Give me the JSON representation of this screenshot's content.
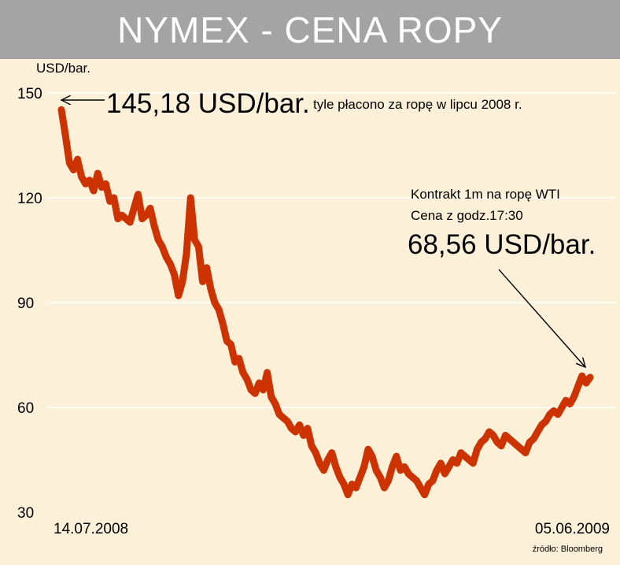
{
  "title": "NYMEX - CENA ROPY",
  "colors": {
    "background": "#fdf0d8",
    "title_bar": "#a4a4a4",
    "line": "#cc3300",
    "grid": "#ffffff"
  },
  "annotations": {
    "peak_value": "145,18 USD/bar.",
    "peak_note": "tyle płacono za ropę w lipcu 2008 r.",
    "contract_line1": "Kontrakt 1m na ropę WTI",
    "contract_line2": "Cena z godz.17:30",
    "current_value": "68,56 USD/bar."
  },
  "source": "źródło: Bloomberg",
  "chart_data": {
    "type": "line",
    "title": "NYMEX - CENA ROPY",
    "ylabel": "USD/bar.",
    "xlabel": "",
    "ylim": [
      30,
      150
    ],
    "yticks": [
      30,
      60,
      90,
      120,
      150
    ],
    "x_start_label": "14.07.2008",
    "x_end_label": "05.06.2009",
    "grid": true,
    "series": [
      {
        "values": [
          145.2,
          138,
          130,
          128,
          131,
          126,
          124,
          125,
          122,
          127,
          123,
          124,
          119,
          120,
          114,
          115,
          114,
          113,
          117,
          121,
          114,
          115,
          117,
          112,
          108,
          106,
          103,
          101,
          98,
          92,
          96,
          104,
          120,
          108,
          106,
          96,
          100,
          94,
          90,
          88,
          84,
          79,
          78,
          73,
          74,
          70,
          68,
          65,
          64,
          67,
          65,
          70,
          63,
          61,
          58,
          57,
          56,
          54,
          53,
          55,
          52,
          54,
          49,
          47,
          44,
          42,
          45,
          47,
          43,
          40,
          38,
          35,
          38,
          37,
          40,
          43,
          48,
          46,
          42,
          40,
          37,
          39,
          43,
          46,
          42,
          43,
          41,
          40,
          39,
          37,
          35,
          38,
          39,
          42,
          44,
          41,
          43,
          45,
          44,
          47,
          46,
          45,
          44,
          48,
          50,
          51,
          53,
          52,
          50,
          49,
          52,
          51,
          50,
          49,
          48,
          47,
          50,
          51,
          53,
          55,
          56,
          58,
          59,
          58,
          60,
          62,
          61,
          63,
          66,
          69,
          67,
          68.6
        ]
      }
    ]
  }
}
